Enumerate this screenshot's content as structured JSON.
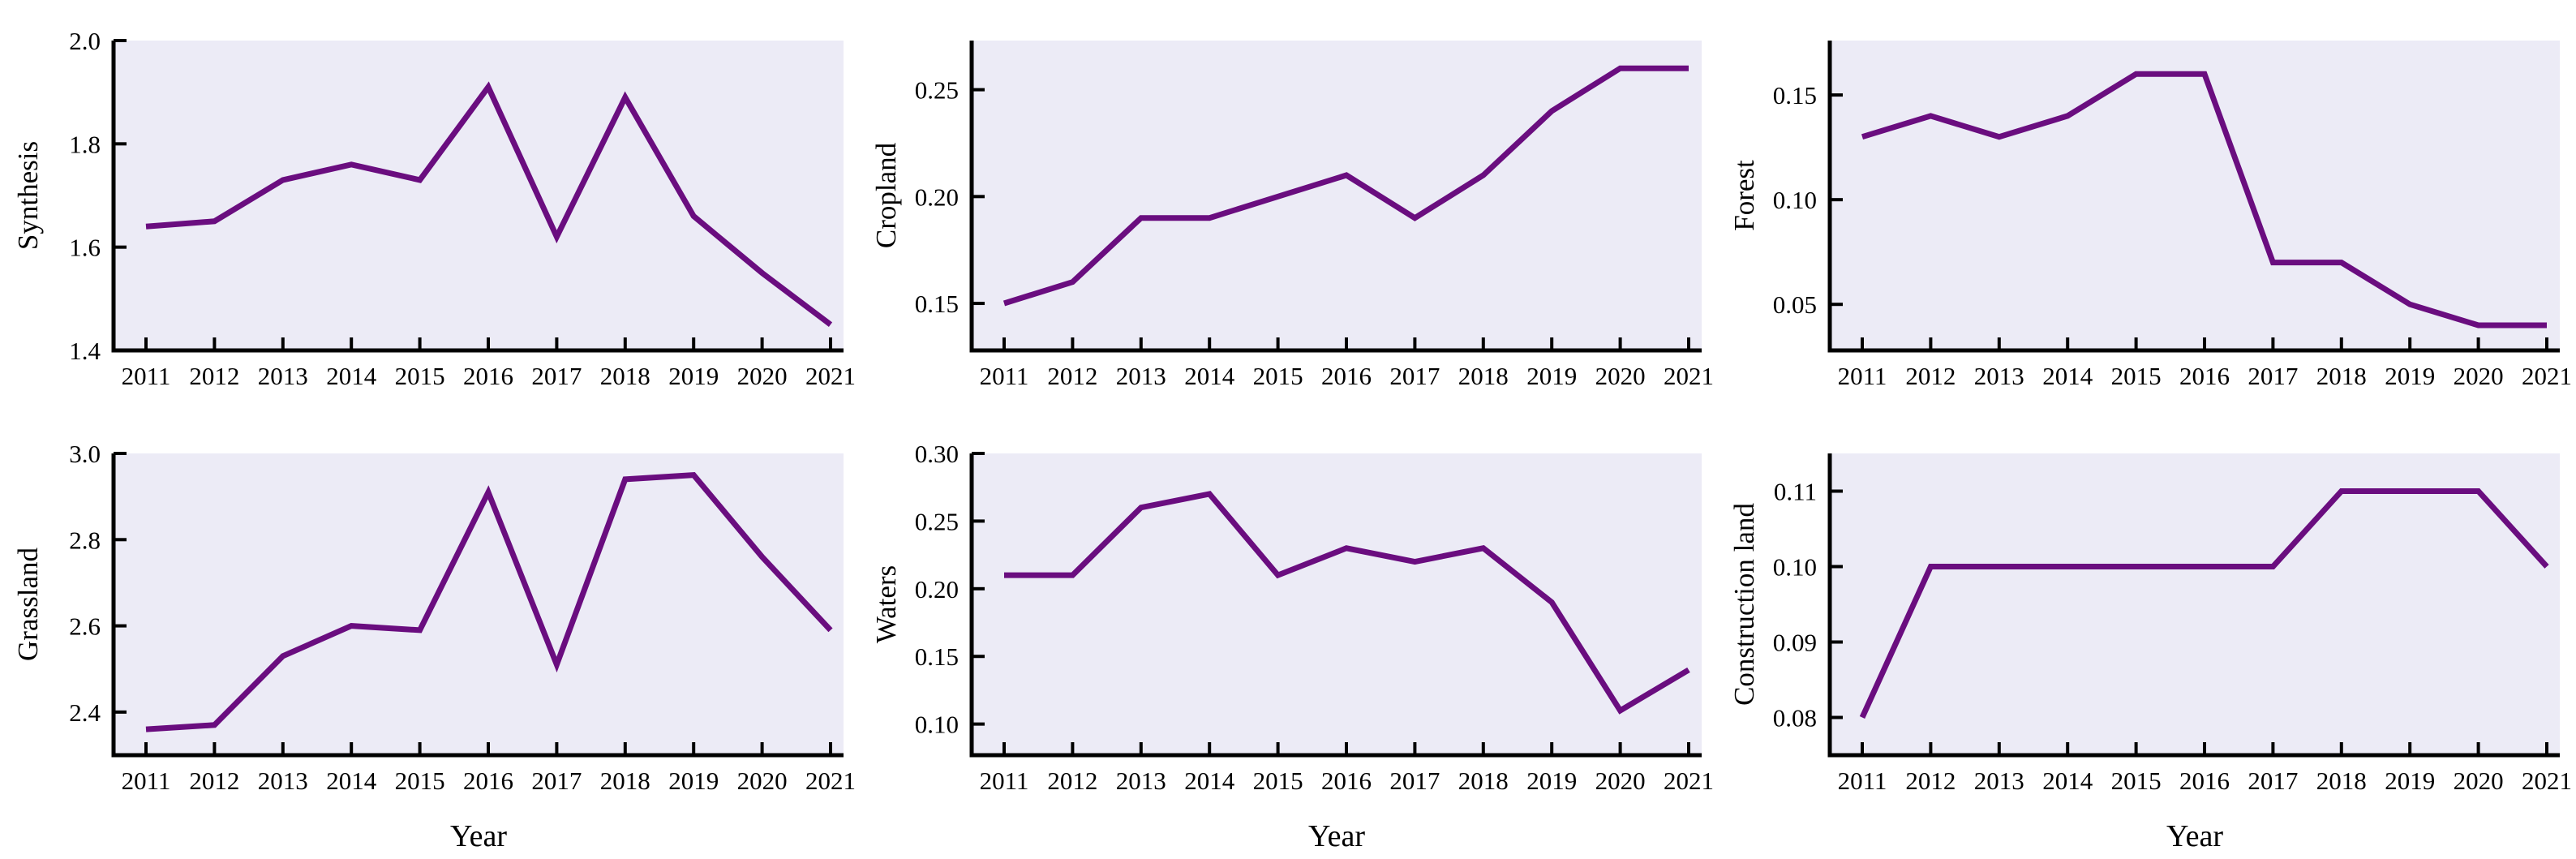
{
  "style": {
    "line_color": "#6a0d7f",
    "plot_bg": "#ecebf6",
    "axis_color": "#000000",
    "text_color": "#000000",
    "page_bg": "#ffffff"
  },
  "chart_data": [
    {
      "type": "line",
      "title": "",
      "ylabel": "Synthesis",
      "xlabel": "",
      "categories": [
        "2011",
        "2012",
        "2013",
        "2014",
        "2015",
        "2016",
        "2017",
        "2018",
        "2019",
        "2020",
        "2021"
      ],
      "values": [
        1.64,
        1.65,
        1.73,
        1.76,
        1.73,
        1.91,
        1.62,
        1.89,
        1.66,
        1.55,
        1.45
      ],
      "yticks": [
        "1.4",
        "1.6",
        "1.8",
        "2.0"
      ],
      "ylim": [
        1.4,
        2.0
      ],
      "grid": false,
      "legend": "none"
    },
    {
      "type": "line",
      "title": "",
      "ylabel": "Cropland",
      "xlabel": "",
      "categories": [
        "2011",
        "2012",
        "2013",
        "2014",
        "2015",
        "2016",
        "2017",
        "2018",
        "2019",
        "2020",
        "2021"
      ],
      "values": [
        0.15,
        0.16,
        0.19,
        0.19,
        0.2,
        0.21,
        0.19,
        0.21,
        0.24,
        0.26,
        0.26
      ],
      "yticks": [
        "0.15",
        "0.20",
        "0.25"
      ],
      "ylim": [
        0.128,
        0.273
      ],
      "grid": false,
      "legend": "none"
    },
    {
      "type": "line",
      "title": "",
      "ylabel": "Forest",
      "xlabel": "",
      "categories": [
        "2011",
        "2012",
        "2013",
        "2014",
        "2015",
        "2016",
        "2017",
        "2018",
        "2019",
        "2020",
        "2021"
      ],
      "values": [
        0.13,
        0.14,
        0.13,
        0.14,
        0.16,
        0.16,
        0.07,
        0.07,
        0.05,
        0.04,
        0.04
      ],
      "yticks": [
        "0.05",
        "0.10",
        "0.15"
      ],
      "ylim": [
        0.028,
        0.176
      ],
      "grid": false,
      "legend": "none"
    },
    {
      "type": "line",
      "title": "",
      "ylabel": "Grassland",
      "xlabel": "Year",
      "categories": [
        "2011",
        "2012",
        "2013",
        "2014",
        "2015",
        "2016",
        "2017",
        "2018",
        "2019",
        "2020",
        "2021"
      ],
      "values": [
        2.36,
        2.37,
        2.53,
        2.6,
        2.59,
        2.91,
        2.51,
        2.94,
        2.95,
        2.76,
        2.59
      ],
      "yticks": [
        "2.4",
        "2.6",
        "2.8",
        "3.0"
      ],
      "ylim": [
        2.3,
        3.0
      ],
      "grid": false,
      "legend": "none"
    },
    {
      "type": "line",
      "title": "",
      "ylabel": "Waters",
      "xlabel": "Year",
      "categories": [
        "2011",
        "2012",
        "2013",
        "2014",
        "2015",
        "2016",
        "2017",
        "2018",
        "2019",
        "2020",
        "2021"
      ],
      "values": [
        0.21,
        0.21,
        0.26,
        0.27,
        0.21,
        0.23,
        0.22,
        0.23,
        0.19,
        0.11,
        0.14
      ],
      "yticks": [
        "0.10",
        "0.15",
        "0.20",
        "0.25",
        "0.30"
      ],
      "ylim": [
        0.077,
        0.3
      ],
      "grid": false,
      "legend": "none"
    },
    {
      "type": "line",
      "title": "",
      "ylabel": "Construction land",
      "xlabel": "Year",
      "categories": [
        "2011",
        "2012",
        "2013",
        "2014",
        "2015",
        "2016",
        "2017",
        "2018",
        "2019",
        "2020",
        "2021"
      ],
      "values": [
        0.08,
        0.1,
        0.1,
        0.1,
        0.1,
        0.1,
        0.1,
        0.11,
        0.11,
        0.11,
        0.1
      ],
      "yticks": [
        "0.08",
        "0.09",
        "0.10",
        "0.11"
      ],
      "ylim": [
        0.075,
        0.115
      ],
      "grid": false,
      "legend": "none"
    }
  ]
}
